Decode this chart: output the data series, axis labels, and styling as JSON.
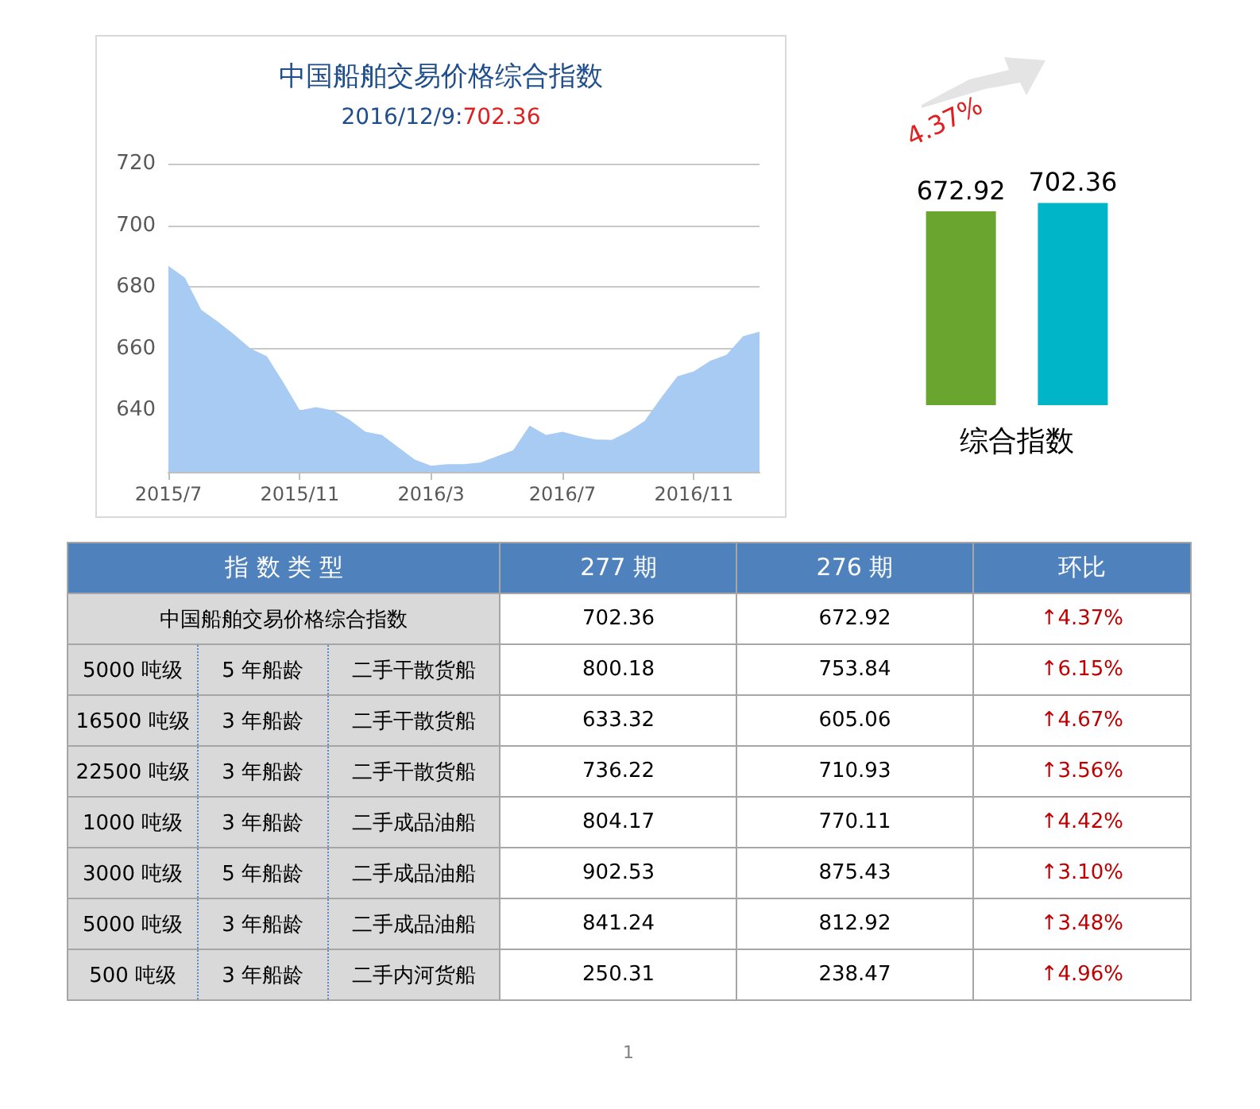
{
  "chart_data": [
    {
      "type": "area",
      "title": "中国船舶交易价格综合指数",
      "subtitle": "2016/12/9:702.36",
      "categories": [
        "2015/7",
        null,
        null,
        null,
        null,
        null,
        null,
        null,
        "2015/11",
        null,
        null,
        null,
        null,
        null,
        null,
        null,
        "2016/3",
        null,
        null,
        null,
        null,
        null,
        null,
        null,
        "2016/7",
        null,
        null,
        null,
        null,
        null,
        null,
        null,
        "2016/11",
        null,
        null,
        null,
        null
      ],
      "series": [
        {
          "color": "#a7cbf2",
          "values": [
            686.8,
            683,
            672.6,
            668.8,
            664.6,
            660,
            657.5,
            649,
            640,
            641,
            640,
            637,
            633,
            632,
            628,
            624,
            622,
            622.5,
            622.5,
            623,
            625,
            627,
            635,
            632,
            633,
            631.6,
            630.5,
            630.4,
            633,
            636.5,
            644,
            651,
            652.6,
            656,
            658,
            664,
            665.5
          ]
        }
      ],
      "ylim": [
        620,
        720
      ],
      "yticks": [
        640,
        660,
        680,
        700,
        720
      ],
      "grid": "y"
    },
    {
      "type": "bar",
      "categories": [
        "综合指数"
      ],
      "series": [
        {
          "color": "#6aa52f",
          "values": [
            672.92
          ]
        },
        {
          "color": "#00b5c8",
          "values": [
            702.36
          ]
        }
      ],
      "data_labels": true,
      "annotations": [
        "4.37%"
      ]
    },
    {
      "type": "other",
      "categories": [
        "指 数 类 型",
        "277 期",
        "276 期",
        "环比"
      ],
      "cell_labels": [
        [
          "中国船舶交易价格综合指数",
          "702.36",
          "672.92",
          "↑4.37%"
        ],
        [
          "5000 吨级",
          "5 年船龄",
          "二手干散货船",
          "800.18",
          "753.84",
          "↑6.15%"
        ],
        [
          "16500 吨级",
          "3 年船龄",
          "二手干散货船",
          "633.32",
          "605.06",
          "↑4.67%"
        ],
        [
          "22500 吨级",
          "3 年船龄",
          "二手干散货船",
          "736.22",
          "710.93",
          "↑3.56%"
        ],
        [
          "1000 吨级",
          "3 年船龄",
          "二手成品油船",
          "804.17",
          "770.11",
          "↑4.42%"
        ],
        [
          "3000 吨级",
          "5 年船龄",
          "二手成品油船",
          "902.53",
          "875.43",
          "↑3.10%"
        ],
        [
          "5000 吨级",
          "3 年船龄",
          "二手成品油船",
          "841.24",
          "812.92",
          "↑3.48%"
        ],
        [
          "500 吨级",
          "3 年船龄",
          "二手内河货船",
          "250.31",
          "238.47",
          "↑4.96%"
        ]
      ],
      "annotations": [
        "1"
      ]
    }
  ]
}
